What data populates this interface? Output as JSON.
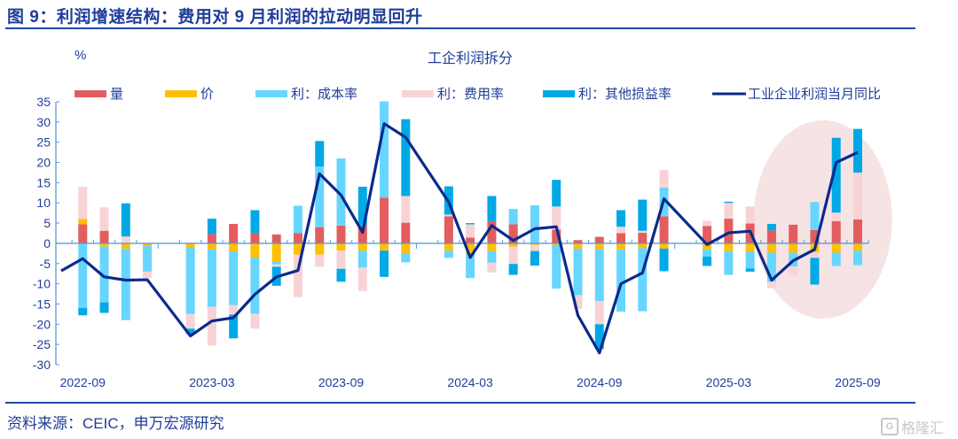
{
  "figure": {
    "title": "图 9：利润增速结构：费用对 9 月利润的拉动明显回升",
    "source": "资料来源：CEIC，申万宏源研究",
    "watermark": "格隆汇"
  },
  "colors": {
    "qty": "#e35d5f",
    "price": "#ffc000",
    "cost": "#66d6ff",
    "fee": "#f8d3d5",
    "other": "#00a9e6",
    "line": "#0a2a8c",
    "axis": "#5b9bd5",
    "highlight": "#f6e3e4"
  },
  "chart_data": {
    "type": "bar",
    "title": "工企利润拆分",
    "ylabel": "%",
    "xlabel": "",
    "ylim": [
      -30,
      35
    ],
    "yticks": [
      35,
      30,
      25,
      20,
      15,
      10,
      5,
      0,
      -5,
      -10,
      -15,
      -20,
      -25,
      -30
    ],
    "xtick_labels": [
      "2022-09",
      "2023-03",
      "2023-09",
      "2024-03",
      "2024-09",
      "2025-03",
      "2025-09"
    ],
    "legend": [
      "量",
      "价",
      "利：成本率",
      "利：费用率",
      "利：其他损益率",
      "工业企业利润当月同比"
    ],
    "legend_position": "top",
    "annotation": "highlight ellipse around 2025-07 to 2025-09",
    "x": [
      "2022-08",
      "2022-09",
      "2022-10",
      "2022-11",
      "2022-12",
      "2023-01",
      "2023-02",
      "2023-03",
      "2023-04",
      "2023-05",
      "2023-06",
      "2023-07",
      "2023-08",
      "2023-09",
      "2023-10",
      "2023-11",
      "2023-12",
      "2024-01",
      "2024-02",
      "2024-03",
      "2024-04",
      "2024-05",
      "2024-06",
      "2024-07",
      "2024-08",
      "2024-09",
      "2024-10",
      "2024-11",
      "2024-12",
      "2025-01",
      "2025-02",
      "2025-03",
      "2025-04",
      "2025-05",
      "2025-06",
      "2025-07",
      "2025-08",
      "2025-09"
    ],
    "series": [
      {
        "name": "量",
        "kind": "bar",
        "color_key": "qty",
        "values": [
          null,
          4.7,
          3.1,
          0,
          0,
          null,
          0,
          2.3,
          4.8,
          2.4,
          2.2,
          2.5,
          4.0,
          4.4,
          4.4,
          11.3,
          5.1,
          null,
          6.7,
          1.4,
          5.5,
          4.7,
          0,
          3.4,
          0.8,
          1.6,
          2.5,
          2.6,
          6.7,
          null,
          4.3,
          6.1,
          4.9,
          3.2,
          4.6,
          3.3,
          5.5,
          5.9
        ]
      },
      {
        "name": "价",
        "kind": "bar",
        "color_key": "price",
        "values": [
          null,
          1.3,
          -0.8,
          -1.3,
          -0.7,
          null,
          -1.0,
          -1.6,
          -2.0,
          -3.5,
          -4.5,
          -2.8,
          -2.8,
          -1.8,
          -1.8,
          -1.8,
          -2.5,
          null,
          -1.8,
          -2.5,
          -1.9,
          -0.8,
          -0.4,
          -0.4,
          -1.3,
          -1.4,
          -1.6,
          -1.2,
          -1.3,
          null,
          -1.5,
          -1.9,
          -2.1,
          -2.3,
          -2.3,
          -2.2,
          -2.3,
          -1.8
        ]
      },
      {
        "name": "利：成本率",
        "kind": "bar",
        "color_key": "cost",
        "values": [
          null,
          -16.0,
          -13.8,
          -17.7,
          -6.3,
          null,
          -16.5,
          -14.1,
          -13.3,
          -13.9,
          -0.7,
          6.8,
          15.0,
          16.6,
          -4.2,
          23.8,
          -2.2,
          null,
          -1.8,
          -6.1,
          -2.9,
          3.8,
          9.4,
          -10.8,
          -11.5,
          -12.9,
          -15.3,
          -15.6,
          7.1,
          null,
          -1.8,
          -5.9,
          -4.1,
          -7.2,
          -3.4,
          6.9,
          -3.3,
          -3.6
        ]
      },
      {
        "name": "利：费用率",
        "kind": "bar",
        "color_key": "fee",
        "values": [
          null,
          8.0,
          5.8,
          1.7,
          -1.6,
          null,
          -3.6,
          -9.6,
          -2.3,
          -3.7,
          -0.6,
          -10.5,
          -3.0,
          -4.5,
          -5.8,
          0,
          6.6,
          null,
          0.4,
          3.3,
          -2.4,
          -4.3,
          -1.5,
          5.7,
          -3.4,
          -5.7,
          1.6,
          0.5,
          4.3,
          null,
          1.3,
          3.9,
          4.2,
          -1.6,
          -2.2,
          -1.4,
          2.1,
          11.6
        ]
      },
      {
        "name": "利：其他损益率",
        "kind": "bar",
        "color_key": "other",
        "values": [
          null,
          -1.8,
          -2.6,
          8.2,
          0,
          null,
          -1.3,
          3.8,
          -5.9,
          5.8,
          -4.7,
          0,
          6.3,
          -3.2,
          9.6,
          -6.5,
          19.0,
          null,
          7.0,
          0.3,
          6.2,
          -2.7,
          -3.6,
          6.6,
          0,
          -6.1,
          4.1,
          7.7,
          -5.6,
          null,
          -2.3,
          0.3,
          -0.8,
          1.6,
          0,
          -6.6,
          18.5,
          10.8
        ]
      },
      {
        "name": "工业企业利润当月同比",
        "kind": "line",
        "color_key": "line",
        "values": [
          -6.8,
          -3.8,
          -8.3,
          -9.1,
          -9.0,
          null,
          -22.9,
          -19.2,
          -18.4,
          -12.6,
          -8.3,
          -6.7,
          17.2,
          11.9,
          2.7,
          29.6,
          26.2,
          null,
          10.2,
          -3.5,
          4.4,
          0.7,
          3.6,
          4.1,
          -17.8,
          -27.1,
          -10.0,
          -7.3,
          11.0,
          null,
          -0.3,
          2.6,
          3.0,
          -9.1,
          -4.3,
          -1.5,
          20.0,
          22.5
        ]
      }
    ]
  }
}
